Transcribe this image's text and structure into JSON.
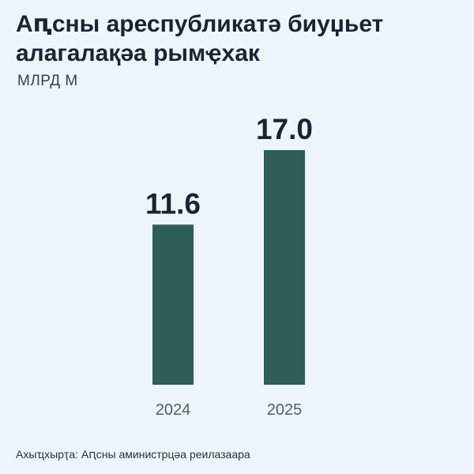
{
  "title_lines": [
    "Аԥсны ареспубликатә биуџьет",
    "алагалақәа рымҿхак"
  ],
  "unit": "МЛРД М",
  "source": "Ахыҵхырҭа: Аԥсны аминистрцәа реилазаара",
  "colors": {
    "bar": "#2f5d58",
    "background": "#eef5fa",
    "text": "#1d2233",
    "tick": "#555a66"
  },
  "chart_data": {
    "type": "bar",
    "title": "Аԥсны ареспубликатә биуџьет алагалақәа рымҿхак",
    "ylabel": "МЛРД М",
    "categories": [
      "2024",
      "2025"
    ],
    "values": [
      11.6,
      17.0
    ],
    "value_labels": [
      "11.6",
      "17.0"
    ],
    "ylim": [
      0,
      17.0
    ],
    "grid": false,
    "legend": "none"
  }
}
